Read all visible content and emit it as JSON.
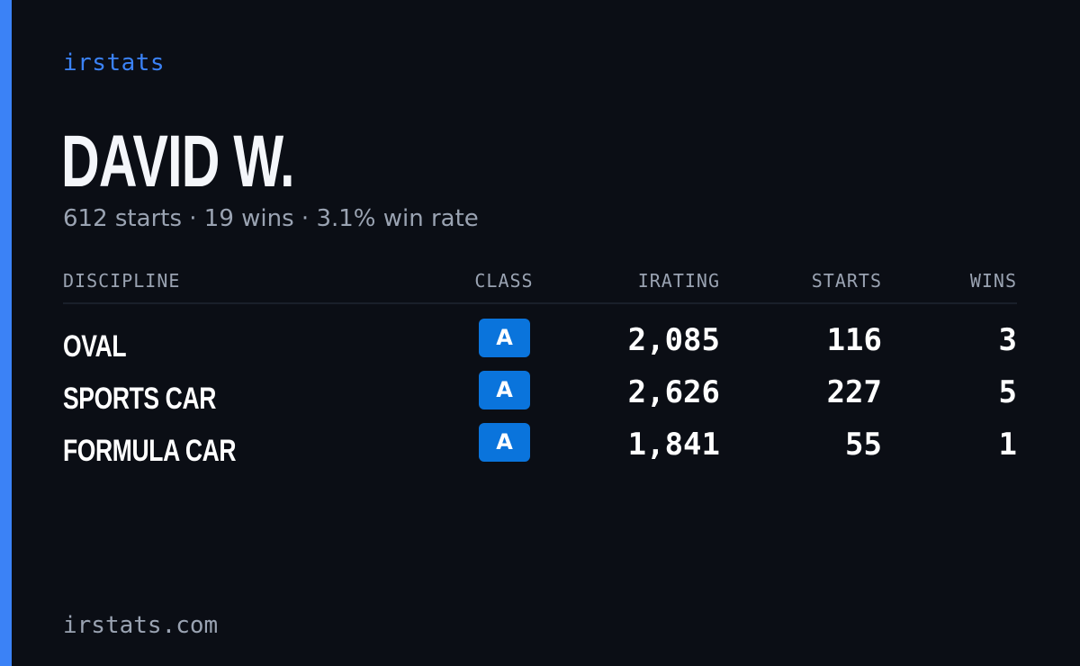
{
  "brand": "irstats",
  "player": {
    "name": "DAVID W.",
    "summary": "612 starts · 19 wins · 3.1% win rate"
  },
  "table": {
    "headers": {
      "discipline": "DISCIPLINE",
      "class": "CLASS",
      "irating": "IRATING",
      "starts": "STARTS",
      "wins": "WINS"
    },
    "rows": [
      {
        "discipline": "OVAL",
        "class": "A",
        "irating": "2,085",
        "starts": "116",
        "wins": "3"
      },
      {
        "discipline": "SPORTS CAR",
        "class": "A",
        "irating": "2,626",
        "starts": "227",
        "wins": "5"
      },
      {
        "discipline": "FORMULA CAR",
        "class": "A",
        "irating": "1,841",
        "starts": "55",
        "wins": "1"
      }
    ]
  },
  "footer": {
    "url": "irstats.com"
  },
  "colors": {
    "background": "#0b0e15",
    "accent": "#3b82f6",
    "class_badge": "#0a74dc",
    "muted_text": "#9aa3b2"
  }
}
